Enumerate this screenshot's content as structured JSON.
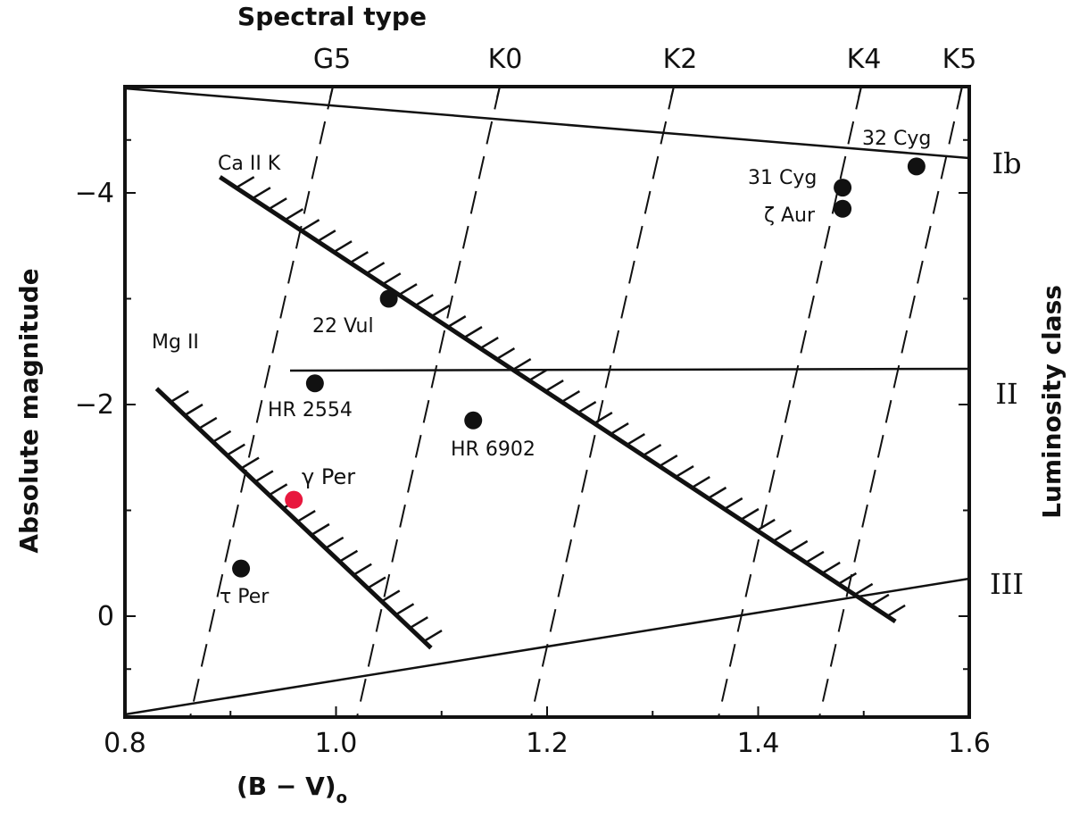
{
  "chart_data": {
    "type": "scatter",
    "title": "",
    "top_axis_label": "Spectral type",
    "xlabel": "(B − V)",
    "xlabel_subscript": "o",
    "ylabel": "Absolute magnitude",
    "right_axis_label": "Luminosity class",
    "xlim": [
      0.8,
      1.6
    ],
    "ylim": [
      0.9,
      -5.0
    ],
    "x_ticks": [
      {
        "value": 0.8,
        "label": "0.8"
      },
      {
        "value": 1.0,
        "label": "1.0"
      },
      {
        "value": 1.2,
        "label": "1.2"
      },
      {
        "value": 1.4,
        "label": "1.4"
      },
      {
        "value": 1.6,
        "label": "1.6"
      }
    ],
    "y_ticks": [
      {
        "value": -4,
        "label": "−4"
      },
      {
        "value": -2,
        "label": "−2"
      },
      {
        "value": 0,
        "label": "0"
      }
    ],
    "spectral_types": [
      {
        "label": "G5",
        "x": 0.94
      },
      {
        "label": "K0",
        "x": 1.16
      },
      {
        "label": "K2",
        "x": 1.34
      },
      {
        "label": "K4",
        "x": 1.57
      },
      {
        "label": "K5",
        "x": 1.67
      }
    ],
    "luminosity_classes": [
      {
        "label": "Ib",
        "y": -4.3
      },
      {
        "label": "II",
        "y": -2.1
      },
      {
        "label": "III",
        "y": -0.3
      }
    ],
    "lines": [
      {
        "label": "Ca II K",
        "points": [
          [
            0.89,
            -4.15
          ],
          [
            1.53,
            0.05
          ]
        ]
      },
      {
        "label": "Mg II",
        "points": [
          [
            0.83,
            -2.15
          ],
          [
            1.09,
            0.3
          ]
        ]
      }
    ],
    "stars": [
      {
        "name": "32 Cyg",
        "x": 1.55,
        "y": -4.25
      },
      {
        "name": "31 Cyg",
        "x": 1.48,
        "y": -4.05
      },
      {
        "name": "ζ Aur",
        "x": 1.48,
        "y": -3.85
      },
      {
        "name": "22 Vul",
        "x": 1.05,
        "y": -3.0
      },
      {
        "name": "HR 2554",
        "x": 0.98,
        "y": -2.2
      },
      {
        "name": "HR 6902",
        "x": 1.13,
        "y": -1.85
      },
      {
        "name": "γ Per",
        "x": 0.96,
        "y": -1.1,
        "highlight": true
      },
      {
        "name": "τ Per",
        "x": 0.91,
        "y": -0.45
      }
    ],
    "colors": {
      "marker": "#111111",
      "highlight": "#e8183e",
      "line": "#111111"
    }
  }
}
